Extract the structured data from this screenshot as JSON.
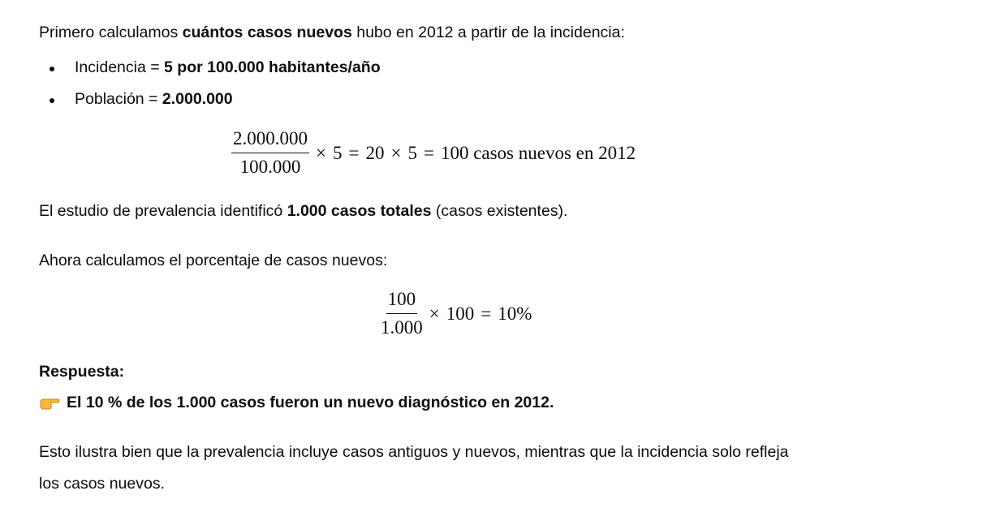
{
  "intro": {
    "pre": "Primero calculamos ",
    "bold": "cuántos casos nuevos",
    "post": " hubo en 2012 a partir de la incidencia:"
  },
  "bullets": [
    {
      "label": "Incidencia = ",
      "value": "5 por 100.000 habitantes/año"
    },
    {
      "label": "Población = ",
      "value": "2.000.000"
    }
  ],
  "formula1": {
    "numerator": "2.000.000",
    "denominator": "100.000",
    "times": "×",
    "factor": "5",
    "equals": "=",
    "mid": "20",
    "factor2": "5",
    "result": "100 casos nuevos en 2012"
  },
  "prevalence": {
    "pre": "El estudio de prevalencia identificó ",
    "bold": "1.000 casos totales",
    "post": " (casos existentes)."
  },
  "percent_intro": "Ahora calculamos el porcentaje de casos nuevos:",
  "formula2": {
    "numerator": "100",
    "denominator": "1.000",
    "times": "×",
    "factor": "100",
    "equals": "=",
    "result": "10%"
  },
  "answer": {
    "heading": "Respuesta:",
    "icon": "pointing-hand-icon",
    "text": "El 10 % de los 1.000 casos fueron un nuevo diagnóstico en 2012."
  },
  "conclusion": {
    "line1": "Esto ilustra bien que la prevalencia incluye casos antiguos y nuevos, mientras que la incidencia solo refleja",
    "line2": "los casos nuevos."
  }
}
